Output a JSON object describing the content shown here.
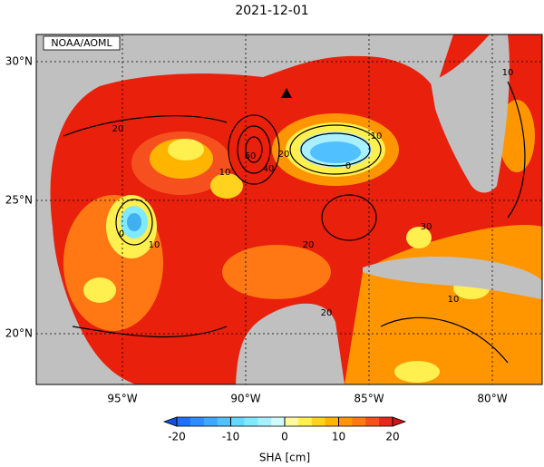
{
  "title": "2021-12-01",
  "credit": "NOAA/AOML",
  "lat_labels": [
    "30°N",
    "25°N",
    "20°N"
  ],
  "lon_labels": [
    "95°W",
    "90°W",
    "85°W",
    "80°W"
  ],
  "contour_labels": [
    "20",
    "10",
    "60",
    "40",
    "20",
    "10",
    "0",
    "0",
    "10",
    "30",
    "20",
    "10",
    "20",
    "10"
  ],
  "colorbar": {
    "label": "SHA [cm]",
    "ticks": [
      -20,
      -10,
      0,
      10,
      20
    ]
  }
}
